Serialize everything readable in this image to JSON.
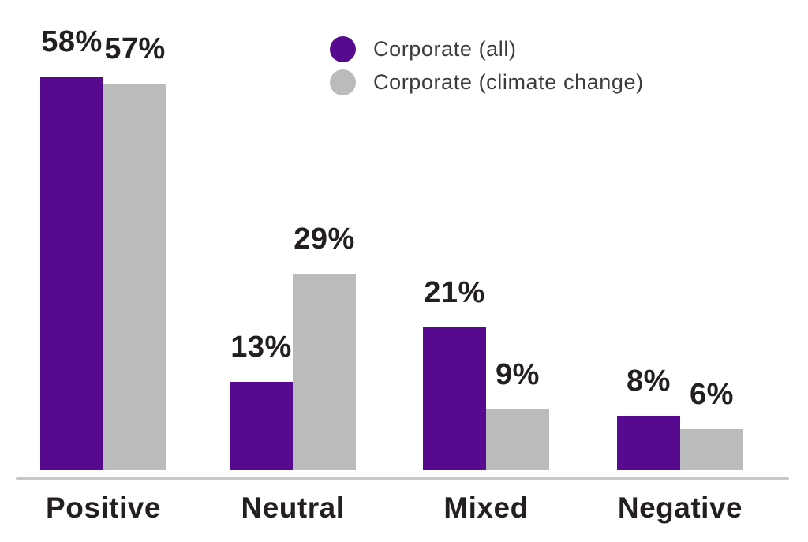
{
  "chart_data": {
    "type": "bar",
    "title": "",
    "categories": [
      "Positive",
      "Neutral",
      "Mixed",
      "Negative"
    ],
    "series": [
      {
        "name": "Corporate (all)",
        "color": "#570a8f",
        "values": [
          58,
          13,
          21,
          8
        ]
      },
      {
        "name": "Corporate (climate change)",
        "color": "#bbbbbb",
        "values": [
          57,
          29,
          9,
          6
        ]
      }
    ],
    "value_suffix": "%",
    "data_labels": {
      "Positive": [
        "58%",
        "57%"
      ],
      "Neutral": [
        "13%",
        "29%"
      ],
      "Mixed": [
        "21%",
        "9%"
      ],
      "Negative": [
        "8%",
        "6%"
      ]
    },
    "ylim": [
      0,
      60
    ],
    "grid": false,
    "y_axis_visible": false,
    "x_axis_line_visible": true,
    "legend_position": "top-right"
  },
  "styles": {
    "background": "#ffffff",
    "data_label_color": "#231f20",
    "category_label_color": "#231f20",
    "legend_text_color": "#3d3d3d",
    "axis_line_color": "#c8c8c8"
  }
}
